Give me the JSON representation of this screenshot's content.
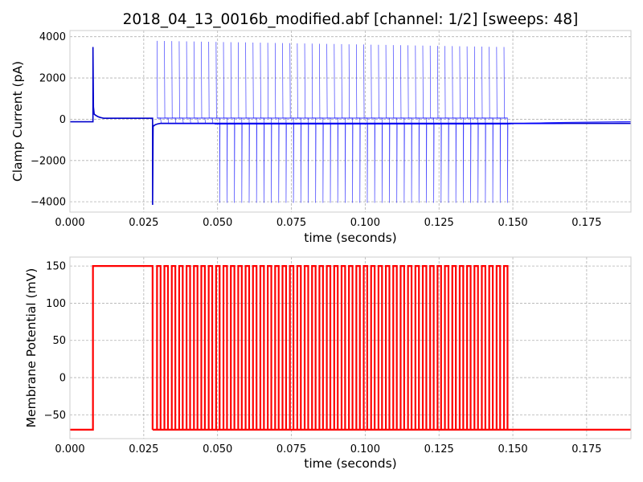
{
  "title": "2018_04_13_0016b_modified.abf [channel: 1/2] [sweeps: 48]",
  "chart_data": [
    {
      "type": "line",
      "xlabel": "time (seconds)",
      "ylabel": "Clamp Current (pA)",
      "xlim": [
        0,
        0.19
      ],
      "ylim": [
        -4500,
        4300
      ],
      "xticks": [
        0,
        0.025,
        0.05,
        0.075,
        0.1,
        0.125,
        0.15,
        0.175
      ],
      "xtick_labels": [
        "0.000",
        "0.025",
        "0.050",
        "0.075",
        "0.100",
        "0.125",
        "0.150",
        "0.175"
      ],
      "yticks": [
        -4000,
        -2000,
        0,
        2000,
        4000
      ],
      "ytick_labels": [
        "−4000",
        "−2000",
        "0",
        "2000",
        "4000"
      ],
      "grid": true,
      "color": "#0000ff",
      "baseline_pA": -120,
      "holding_pA": 50,
      "step_on_s": 0.0078,
      "step_on_peak_pA": 3500,
      "step_off_s": 0.028,
      "step_off_peak_pA": -4150,
      "pulse_sweeps": 48,
      "pulse_start_s": 0.0295,
      "pulse_spacing_s": 0.0025,
      "pulse_width_s": 0.0012,
      "pulse_peak_up_pA": 3800,
      "pulse_peak_down_pA": -4050,
      "pulse_peak_up_end_pA": 3500
    },
    {
      "type": "line",
      "xlabel": "time (seconds)",
      "ylabel": "Membrane Potential (mV)",
      "xlim": [
        0,
        0.19
      ],
      "ylim": [
        -82,
        162
      ],
      "xticks": [
        0,
        0.025,
        0.05,
        0.075,
        0.1,
        0.125,
        0.15,
        0.175
      ],
      "xtick_labels": [
        "0.000",
        "0.025",
        "0.050",
        "0.075",
        "0.100",
        "0.125",
        "0.150",
        "0.175"
      ],
      "yticks": [
        -50,
        0,
        50,
        100,
        150
      ],
      "ytick_labels": [
        "−50",
        "0",
        "50",
        "100",
        "150"
      ],
      "grid": true,
      "color": "#ff0000",
      "resting_mV": -70,
      "step_mV": 150,
      "step_on_s": 0.0078,
      "step_off_s": 0.028,
      "pulse_sweeps": 48,
      "pulse_start_s": 0.0295,
      "pulse_spacing_s": 0.0025,
      "pulse_width_s": 0.0012
    }
  ]
}
